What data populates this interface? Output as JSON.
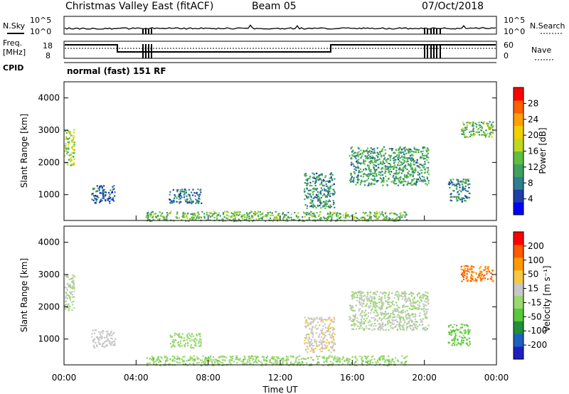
{
  "header": {
    "title": "Christmas Valley East (fitACF)",
    "beam": "Beam 05",
    "date": "07/Oct/2018"
  },
  "noise_panel": {
    "left_label": "N.Sky",
    "right_label": "N.Search",
    "left_ticks": [
      "10^5",
      "10^0"
    ],
    "right_ticks": [
      "10^5",
      "10^0"
    ]
  },
  "freq_panel": {
    "left_label_1": "Freq.",
    "left_label_2": "[MHz]",
    "right_label": "Nave",
    "left_ticks": [
      "18",
      "8"
    ],
    "right_ticks": [
      "60",
      "0"
    ]
  },
  "cpid": {
    "label": "CPID",
    "mode": "normal (fast) 151 RF"
  },
  "colors": {
    "power_scale": [
      "#0000ff",
      "#1f3fa6",
      "#2f7f8f",
      "#3fa060",
      "#5fbf3f",
      "#bfd81f",
      "#f0d000",
      "#ffa000",
      "#ff6000",
      "#ff0000"
    ],
    "velocity_scale": [
      "#ff0000",
      "#ff5a00",
      "#ff9a00",
      "#f5c842",
      "#c8c8c8",
      "#9ad870",
      "#5ac83a",
      "#1f8f3a",
      "#1f5fbf",
      "#1f1fbf"
    ]
  },
  "chart_data": [
    {
      "type": "heatmap",
      "name": "power",
      "ylabel": "Slant Range [km]",
      "yticks": [
        "1000",
        "2000",
        "3000",
        "4000"
      ],
      "ylim": [
        200,
        4500
      ],
      "xlim": [
        0,
        24
      ],
      "colorbar_label": "Power [dB]",
      "colorbar_ticks": [
        "4",
        "8",
        "12",
        "16",
        "20",
        "24",
        "28"
      ],
      "clim": [
        0,
        32
      ],
      "regions": [
        {
          "t0": 0.0,
          "t1": 0.55,
          "r0": 1900,
          "r1": 3050,
          "v": 16
        },
        {
          "t0": 1.5,
          "t1": 2.8,
          "r0": 750,
          "r1": 1300,
          "v": 7
        },
        {
          "t0": 5.8,
          "t1": 7.6,
          "r0": 750,
          "r1": 1200,
          "v": 8
        },
        {
          "t0": 13.3,
          "t1": 15.0,
          "r0": 600,
          "r1": 1700,
          "v": 10
        },
        {
          "t0": 15.8,
          "t1": 20.2,
          "r0": 1300,
          "r1": 2500,
          "v": 11
        },
        {
          "t0": 21.3,
          "t1": 22.5,
          "r0": 800,
          "r1": 1500,
          "v": 9
        },
        {
          "t0": 22.0,
          "t1": 23.8,
          "r0": 2800,
          "r1": 3300,
          "v": 14
        },
        {
          "t0": 4.5,
          "t1": 19.0,
          "r0": 200,
          "r1": 500,
          "v": 14
        }
      ]
    },
    {
      "type": "heatmap",
      "name": "velocity",
      "ylabel": "Slant Range [km]",
      "yticks": [
        "1000",
        "2000",
        "3000",
        "4000"
      ],
      "ylim": [
        200,
        4500
      ],
      "xlim": [
        0,
        24
      ],
      "xlabel": "Time UT",
      "xticks": [
        "00:00",
        "04:00",
        "08:00",
        "12:00",
        "16:00",
        "20:00",
        "00:00"
      ],
      "colorbar_label": "Velocity [m s⁻¹]",
      "colorbar_ticks": [
        "200",
        "100",
        "50",
        "15",
        "-15",
        "-50",
        "-100",
        "-200"
      ],
      "clim": [
        -250,
        250
      ],
      "regions": [
        {
          "t0": 0.0,
          "t1": 0.55,
          "r0": 1900,
          "r1": 3050,
          "v": 0
        },
        {
          "t0": 1.5,
          "t1": 2.8,
          "r0": 750,
          "r1": 1300,
          "v": 30
        },
        {
          "t0": 5.8,
          "t1": 7.6,
          "r0": 750,
          "r1": 1200,
          "v": -30
        },
        {
          "t0": 13.3,
          "t1": 15.0,
          "r0": 600,
          "r1": 1700,
          "v": 40
        },
        {
          "t0": 15.8,
          "t1": 20.2,
          "r0": 1300,
          "r1": 2500,
          "v": 0
        },
        {
          "t0": 21.3,
          "t1": 22.5,
          "r0": 800,
          "r1": 1500,
          "v": -60
        },
        {
          "t0": 22.0,
          "t1": 23.8,
          "r0": 2800,
          "r1": 3300,
          "v": 150
        },
        {
          "t0": 4.5,
          "t1": 19.0,
          "r0": 200,
          "r1": 500,
          "v": -35
        }
      ]
    }
  ]
}
